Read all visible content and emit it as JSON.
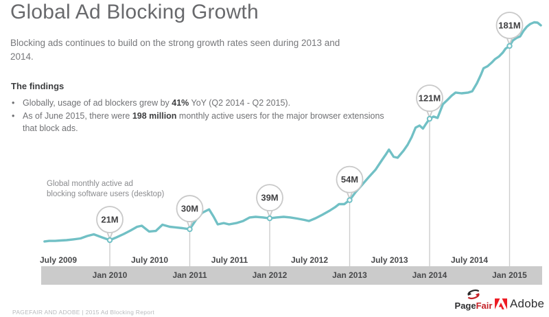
{
  "header": {
    "title": "Global Ad Blocking Growth",
    "subtitle_lines": [
      "Blocking ads continues to build on the strong growth rates seen during 2013 and",
      "2014."
    ]
  },
  "findings": {
    "heading": "The findings",
    "bullets": [
      {
        "parts": [
          {
            "text": "Globally, usage of ad blockers grew by "
          },
          {
            "text": "41%",
            "bold": true
          },
          {
            "text": " YoY (Q2 2014 - Q2 2015)."
          }
        ]
      },
      {
        "parts": [
          {
            "text": "As of June 2015, there were "
          },
          {
            "text": "198 million",
            "bold": true
          },
          {
            "text": " monthly active users for the major browser extensions",
            "br_after": true
          },
          {
            "text": "that block ads."
          }
        ]
      }
    ]
  },
  "chart_annotation_lines": [
    "Global monthly active ad",
    "blocking software users (desktop)"
  ],
  "chart_data": {
    "type": "line",
    "title": "Global monthly active ad blocking software users (desktop)",
    "unit": "millions of monthly active users",
    "line_color": "#71c0c5",
    "grid": "off",
    "legend": "none",
    "y_range_millions": [
      0,
      210
    ],
    "x_axis": {
      "july_labels": [
        "July 2009",
        "July 2010",
        "July 2011",
        "July 2012",
        "July 2013",
        "July 2014"
      ],
      "jan_labels": [
        "Jan 2010",
        "Jan 2011",
        "Jan 2012",
        "Jan 2013",
        "Jan 2014",
        "Jan 2015"
      ]
    },
    "milestones": [
      {
        "label": "21M",
        "t": 0,
        "value": 21
      },
      {
        "label": "30M",
        "t": 12,
        "value": 30
      },
      {
        "label": "39M",
        "t": 24,
        "value": 39
      },
      {
        "label": "54M",
        "t": 36,
        "value": 54
      },
      {
        "label": "121M",
        "t": 48,
        "value": 121
      },
      {
        "label": "181M",
        "t": 60,
        "value": 181
      }
    ],
    "series": {
      "name": "Global monthly active ad blocking software users (desktop)",
      "t_months_from_jan2010": [
        -9.8,
        -9.1,
        -8.2,
        -7.4,
        -6.5,
        -5.5,
        -4.4,
        -3.4,
        -2.4,
        -1.2,
        0,
        1,
        2.1,
        3.1,
        4.1,
        4.8,
        5.9,
        6.9,
        7.9,
        9,
        9.9,
        10.9,
        12,
        12.9,
        13.9,
        14.9,
        15.6,
        16.2,
        17.1,
        17.9,
        19,
        20,
        21,
        21.9,
        23,
        24,
        25,
        26.1,
        27.1,
        28.1,
        29.2,
        29.9,
        30.9,
        31.9,
        33,
        33.8,
        34.4,
        35.2,
        36,
        36.9,
        37.8,
        38.8,
        39.9,
        40.8,
        41.5,
        41.9,
        42.6,
        43.2,
        44.1,
        44.7,
        45.3,
        45.9,
        46.5,
        47,
        47.5,
        48,
        48.6,
        49.2,
        50,
        50.6,
        51.3,
        51.9,
        52.8,
        53.8,
        54.4,
        55.1,
        55.7,
        56.1,
        56.7,
        57.3,
        57.8,
        58.4,
        59,
        59.4,
        60,
        60.5,
        61.1,
        61.6,
        62.1,
        62.6,
        63.1,
        63.7,
        64.2,
        64.7
      ],
      "values_millions": [
        19.9,
        20.4,
        20.4,
        20.7,
        21,
        21.6,
        22.4,
        24.4,
        25.8,
        23.3,
        21,
        23.3,
        26.1,
        28.9,
        32,
        32.9,
        28.1,
        28.6,
        33.7,
        32,
        31.5,
        30.9,
        30,
        37.4,
        43.6,
        46.4,
        40.2,
        34,
        35.1,
        34,
        35.1,
        36.8,
        39.7,
        40.2,
        39.7,
        39,
        39.7,
        40.2,
        39.7,
        38.8,
        37.7,
        36.8,
        39.1,
        41.9,
        45.3,
        48.1,
        50.7,
        50.7,
        54,
        60.6,
        66.2,
        72.5,
        79.2,
        86.6,
        92.2,
        95.6,
        89.7,
        88.9,
        94.8,
        99.6,
        105.8,
        113.7,
        115.4,
        112.9,
        117.1,
        121,
        122.8,
        121.7,
        133,
        136.1,
        140,
        142.6,
        142,
        142.6,
        143.7,
        150.2,
        157.3,
        162.6,
        164.3,
        167.2,
        170,
        172.3,
        175.6,
        178.8,
        181,
        185.5,
        187.8,
        188.9,
        193.5,
        196.9,
        199.1,
        200.5,
        200.2,
        198
      ]
    }
  },
  "footer": {
    "report_label": "PAGEFAIR AND ADOBE | 2015 Ad Blocking Report",
    "pagefair": {
      "black": "Page",
      "red": "Fair"
    },
    "adobe": {
      "label": "Adobe"
    }
  },
  "colors": {
    "line": "#71c0c5",
    "grid_line": "#cdcdcd",
    "balloon_border": "#c9c9c9",
    "balloon_text": "#3f3f41",
    "axis_text": "#47484a",
    "band": "#cbcbcb",
    "title": "#68696c",
    "body_text": "#76777a",
    "bold_text": "#3d3e40",
    "annotation": "#8a8b8e",
    "footer_text": "#b9babd",
    "pagefair_red": "#c42127",
    "adobe_red": "#ed1c24"
  }
}
